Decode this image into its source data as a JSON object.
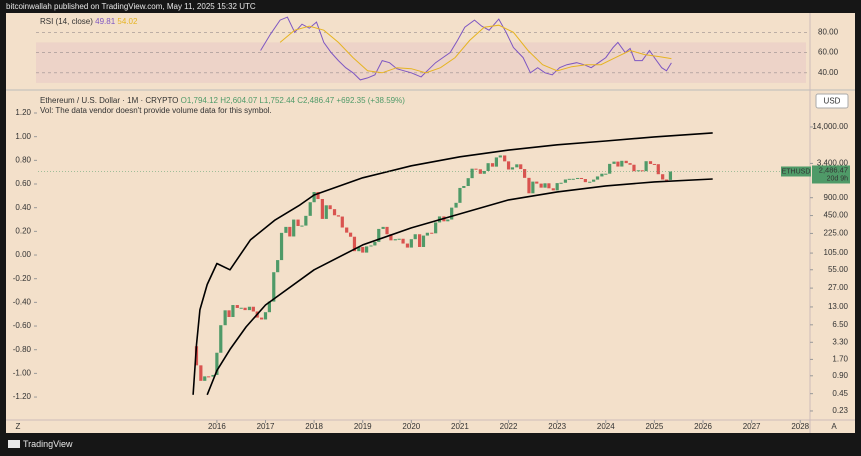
{
  "published": "bitcoinwallah published on TradingView.com, May 11, 2025 15:32 UTC",
  "brand": "TradingView",
  "chart_data": [
    {
      "type": "line",
      "title": "RSI (14, close)",
      "xlim": [
        2012.32,
        2028.16
      ],
      "ylim": [
        25,
        100
      ],
      "yticks": [
        {
          "value": 80,
          "label": "80.00"
        },
        {
          "value": 60,
          "label": "60.00"
        },
        {
          "value": 40,
          "label": "40.00"
        }
      ],
      "series": [
        {
          "color": "#7e57c2",
          "x": [
            2016.9,
            2017.1,
            2017.3,
            2017.45,
            2017.6,
            2017.75,
            2017.9,
            2018.05,
            2018.2,
            2018.35,
            2018.5,
            2018.65,
            2018.8,
            2018.95,
            2019.1,
            2019.25,
            2019.4,
            2019.55,
            2019.7,
            2019.85,
            2020.0,
            2020.2,
            2020.35,
            2020.5,
            2020.65,
            2020.8,
            2020.95,
            2021.1,
            2021.3,
            2021.45,
            2021.6,
            2021.8,
            2021.95,
            2022.1,
            2022.3,
            2022.45,
            2022.6,
            2022.75,
            2022.9,
            2023.05,
            2023.2,
            2023.4,
            2023.55,
            2023.7,
            2023.85,
            2024.0,
            2024.15,
            2024.25,
            2024.4,
            2024.5,
            2024.6,
            2024.75,
            2024.9,
            2025.0,
            2025.15,
            2025.25,
            2025.35
          ],
          "values": [
            62,
            78,
            92,
            95,
            80,
            88,
            84,
            90,
            70,
            60,
            52,
            45,
            40,
            33,
            35,
            38,
            52,
            50,
            44,
            42,
            40,
            36,
            43,
            50,
            55,
            60,
            72,
            85,
            92,
            86,
            82,
            93,
            80,
            65,
            55,
            40,
            45,
            40,
            38,
            45,
            48,
            50,
            48,
            45,
            50,
            55,
            65,
            70,
            60,
            64,
            52,
            52,
            62,
            55,
            45,
            42,
            49.81
          ]
        },
        {
          "color": "#e6b422",
          "x": [
            2017.3,
            2017.6,
            2017.9,
            2018.2,
            2018.5,
            2018.8,
            2019.1,
            2019.4,
            2019.7,
            2020.0,
            2020.3,
            2020.6,
            2020.9,
            2021.2,
            2021.5,
            2021.8,
            2022.1,
            2022.4,
            2022.7,
            2023.0,
            2023.3,
            2023.6,
            2023.9,
            2024.2,
            2024.5,
            2024.8,
            2025.1,
            2025.35
          ],
          "values": [
            70,
            82,
            86,
            82,
            70,
            55,
            42,
            40,
            45,
            44,
            40,
            45,
            55,
            72,
            85,
            87,
            80,
            62,
            48,
            42,
            46,
            48,
            48,
            55,
            62,
            58,
            56,
            54.02
          ]
        }
      ]
    },
    {
      "type": "candlestick",
      "title": "Ethereum / U.S. Dollar · 1M · CRYPTO",
      "ohlc": [
        "O1,794.12",
        "H2,604.07",
        "L1,752.44",
        "C2,486.47"
      ],
      "change": "+692.35 (+38.59%)",
      "note": "Vol: The data vendor doesn't provide volume data for this symbol.",
      "currency": "USD",
      "scale_buttons": [
        "Z",
        "A"
      ],
      "up_color": "#4f9a68",
      "down_color": "#d9534f",
      "log_scale": true,
      "xlim": [
        2012.32,
        2028.16
      ],
      "xticks": [
        2016,
        2017,
        2018,
        2019,
        2020,
        2021,
        2022,
        2023,
        2024,
        2025,
        2026,
        2027,
        2028
      ],
      "ylim": [
        0.162,
        52200
      ],
      "yticks": [
        {
          "value": 14000,
          "label": "14,000.00"
        },
        {
          "value": 3400,
          "label": "3,400.00"
        },
        {
          "value": 900,
          "label": "900.00"
        },
        {
          "value": 450,
          "label": "450.00"
        },
        {
          "value": 225,
          "label": "225.00"
        },
        {
          "value": 105,
          "label": "105.00"
        },
        {
          "value": 55,
          "label": "55.00"
        },
        {
          "value": 27,
          "label": "27.00"
        },
        {
          "value": 13,
          "label": "13.00"
        },
        {
          "value": 6.5,
          "label": "6.50"
        },
        {
          "value": 3.3,
          "label": "3.30"
        },
        {
          "value": 1.7,
          "label": "1.70"
        },
        {
          "value": 0.9,
          "label": "0.90"
        },
        {
          "value": 0.45,
          "label": "0.45"
        },
        {
          "value": 0.23,
          "label": "0.23"
        }
      ],
      "y2lim": [
        -1.394,
        1.369
      ],
      "y2ticks": [
        {
          "value": 1.2,
          "label": "1.20"
        },
        {
          "value": 1.0,
          "label": "1.00"
        },
        {
          "value": 0.8,
          "label": "0.80"
        },
        {
          "value": 0.6,
          "label": "0.60"
        },
        {
          "value": 0.4,
          "label": "0.40"
        },
        {
          "value": 0.2,
          "label": "0.20"
        },
        {
          "value": 0,
          "label": "0.00"
        },
        {
          "value": -0.2,
          "label": "-0.20"
        },
        {
          "value": -0.4,
          "label": "-0.40"
        },
        {
          "value": -0.6,
          "label": "-0.60"
        },
        {
          "value": -0.8,
          "label": "-0.80"
        },
        {
          "value": -1.0,
          "label": "-1.00"
        },
        {
          "value": -1.2,
          "label": "-1.20"
        }
      ],
      "x": [
        2015.58,
        2015.67,
        2015.75,
        2015.83,
        2015.92,
        2016.0,
        2016.08,
        2016.17,
        2016.25,
        2016.33,
        2016.42,
        2016.5,
        2016.58,
        2016.67,
        2016.75,
        2016.83,
        2016.92,
        2017.0,
        2017.08,
        2017.17,
        2017.25,
        2017.33,
        2017.42,
        2017.5,
        2017.58,
        2017.67,
        2017.75,
        2017.83,
        2017.92,
        2018.0,
        2018.08,
        2018.17,
        2018.25,
        2018.33,
        2018.42,
        2018.5,
        2018.58,
        2018.67,
        2018.75,
        2018.83,
        2018.92,
        2019.0,
        2019.08,
        2019.17,
        2019.25,
        2019.33,
        2019.42,
        2019.5,
        2019.58,
        2019.67,
        2019.75,
        2019.83,
        2019.92,
        2020.0,
        2020.08,
        2020.17,
        2020.25,
        2020.33,
        2020.42,
        2020.5,
        2020.58,
        2020.67,
        2020.75,
        2020.83,
        2020.92,
        2021.0,
        2021.08,
        2021.17,
        2021.25,
        2021.33,
        2021.42,
        2021.5,
        2021.58,
        2021.67,
        2021.75,
        2021.83,
        2021.92,
        2022.0,
        2022.08,
        2022.17,
        2022.25,
        2022.33,
        2022.42,
        2022.5,
        2022.58,
        2022.67,
        2022.75,
        2022.83,
        2022.92,
        2023.0,
        2023.08,
        2023.17,
        2023.25,
        2023.33,
        2023.42,
        2023.5,
        2023.58,
        2023.67,
        2023.75,
        2023.83,
        2023.92,
        2024.0,
        2024.08,
        2024.17,
        2024.25,
        2024.33,
        2024.42,
        2024.5,
        2024.58,
        2024.67,
        2024.75,
        2024.83,
        2024.92,
        2025.0,
        2025.08,
        2025.17,
        2025.25,
        2025.33
      ],
      "open": [
        2.83,
        1.35,
        0.74,
        0.88,
        0.87,
        0.93,
        2.2,
        6.4,
        11.4,
        8.8,
        14,
        12.5,
        12.6,
        11.5,
        13.1,
        10.9,
        8.6,
        8.0,
        10.6,
        16,
        50,
        80,
        230,
        290,
        200,
        385,
        300,
        305,
        445,
        755,
        1120,
        855,
        395,
        670,
        577,
        455,
        433,
        283,
        232,
        198,
        113,
        133,
        107,
        136,
        141,
        162,
        268,
        290,
        218,
        172,
        180,
        183,
        152,
        130,
        180,
        218,
        133,
        207,
        231,
        226,
        345,
        435,
        360,
        386,
        612,
        737,
        1314,
        1416,
        1919,
        2773,
        2707,
        2275,
        2536,
        3433,
        3001,
        4288,
        4631,
        3683,
        2688,
        2920,
        3283,
        2730,
        1942,
        1067,
        1679,
        1554,
        1328,
        1573,
        1296,
        1196,
        1585,
        1606,
        1822,
        1870,
        1874,
        1934,
        1857,
        1645,
        1671,
        1815,
        2052,
        2282,
        2283,
        3340,
        3647,
        3013,
        3762,
        3436,
        3232,
        2513,
        2603,
        2519,
        3706,
        3332,
        3300,
        2237,
        1822,
        1794.12
      ],
      "close": [
        1.35,
        0.74,
        0.88,
        0.87,
        0.93,
        2.2,
        6.4,
        11.4,
        8.8,
        14,
        12.5,
        12.6,
        11.5,
        13.1,
        10.9,
        8.6,
        8.0,
        10.6,
        16,
        50,
        80,
        230,
        290,
        200,
        385,
        300,
        305,
        445,
        755,
        1120,
        855,
        395,
        670,
        577,
        455,
        433,
        283,
        232,
        198,
        113,
        133,
        107,
        136,
        141,
        162,
        268,
        290,
        218,
        172,
        180,
        183,
        152,
        130,
        180,
        218,
        133,
        207,
        231,
        226,
        345,
        435,
        360,
        386,
        612,
        737,
        1314,
        1416,
        1919,
        2773,
        2707,
        2275,
        2536,
        3433,
        3001,
        4288,
        4631,
        3683,
        2688,
        2920,
        3283,
        2730,
        1942,
        1067,
        1679,
        1554,
        1328,
        1573,
        1296,
        1196,
        1585,
        1606,
        1822,
        1870,
        1874,
        1934,
        1857,
        1645,
        1671,
        1815,
        2052,
        2282,
        2283,
        3340,
        3647,
        3013,
        3762,
        3436,
        3232,
        2513,
        2603,
        2519,
        3706,
        3332,
        3300,
        2237,
        1822,
        1794.12,
        2486.47
      ],
      "curves": [
        {
          "color": "#000000",
          "x": [
            2015.51,
            2015.58,
            2015.65,
            2015.8,
            2016.0,
            2016.27,
            2016.69,
            2017.2,
            2017.71,
            2018.0,
            2019.0,
            2020.0,
            2021.0,
            2022.0,
            2023.0,
            2024.0,
            2025.0,
            2026.2
          ],
          "values": [
            0.43,
            3,
            11.6,
            31,
            70,
            55,
            175,
            380,
            680,
            1000,
            1950,
            3100,
            4400,
            5700,
            7000,
            8100,
            9500,
            11100
          ]
        },
        {
          "color": "#000000",
          "x": [
            2015.8,
            2016.0,
            2016.27,
            2016.6,
            2017.0,
            2018.0,
            2019.0,
            2020.0,
            2021.0,
            2022.0,
            2023.0,
            2024.0,
            2025.0,
            2026.2
          ],
          "values": [
            0.43,
            1.1,
            2.5,
            6,
            14,
            55,
            144,
            279,
            480,
            826,
            1127,
            1422,
            1660,
            1860
          ]
        }
      ],
      "price_badge": {
        "symbol": "ETHUSD",
        "price": "2,486.47",
        "countdown": "20d 9h",
        "color": "#4f9a68"
      }
    }
  ]
}
